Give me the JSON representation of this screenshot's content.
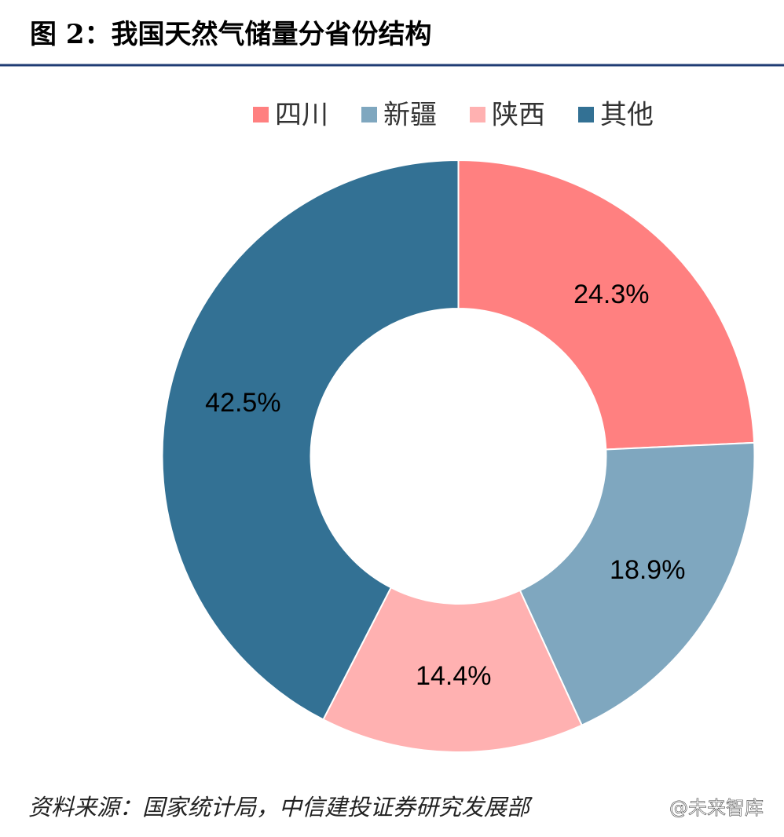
{
  "chart_data": {
    "type": "donut",
    "title": "图 2：我国天然气储量分省份结构",
    "categories": [
      "四川",
      "新疆",
      "陕西",
      "其他"
    ],
    "values": [
      24.3,
      18.9,
      14.4,
      42.5
    ],
    "value_labels": [
      "24.3%",
      "18.9%",
      "14.4%",
      "42.5%"
    ],
    "colors": [
      "#ff8080",
      "#7fa7bf",
      "#ffb1b1",
      "#337194"
    ],
    "legend": "top",
    "source": "资料来源：国家统计局，中信建投证券研究发展部",
    "watermark": "@未来智库"
  }
}
